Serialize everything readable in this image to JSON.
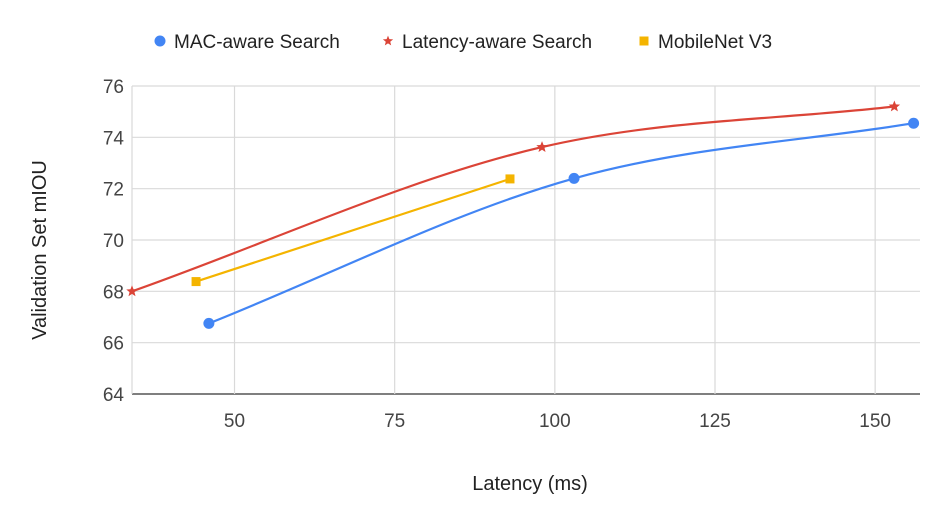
{
  "chart_data": {
    "type": "line",
    "title": "",
    "xlabel": "Latency (ms)",
    "ylabel": "Validation Set mIOU",
    "xlim": [
      34,
      157
    ],
    "ylim": [
      64,
      76
    ],
    "x_ticks": [
      50,
      75,
      100,
      125,
      150
    ],
    "y_ticks": [
      64,
      66,
      68,
      70,
      72,
      74,
      76
    ],
    "grid": true,
    "legend_position": "top",
    "smooth": true,
    "series": [
      {
        "name": "MAC-aware Search",
        "color": "#4285F4",
        "marker": "circle",
        "points": [
          [
            46,
            66.75
          ],
          [
            103,
            72.4
          ],
          [
            156,
            74.55
          ]
        ]
      },
      {
        "name": "Latency-aware Search",
        "color": "#DB4437",
        "marker": "star",
        "points": [
          [
            34,
            68.0
          ],
          [
            98,
            73.62
          ],
          [
            153,
            75.2
          ]
        ]
      },
      {
        "name": "MobileNet V3",
        "color": "#F4B400",
        "marker": "square",
        "points": [
          [
            44,
            68.38
          ],
          [
            93,
            72.38
          ]
        ]
      }
    ]
  }
}
